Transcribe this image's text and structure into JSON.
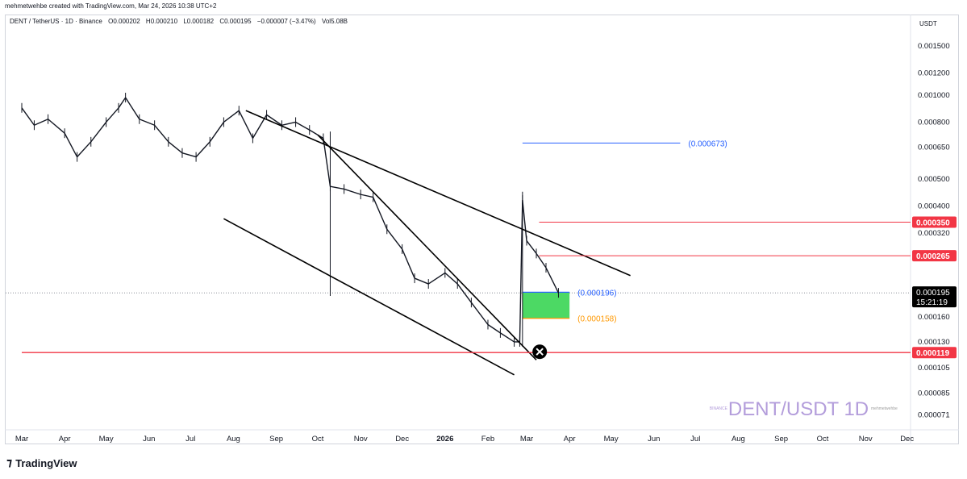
{
  "header": {
    "created_line": "mehmetwehbe created with TradingView.com, Mar 24, 2026 10:38 UTC+2"
  },
  "legend": {
    "symbol": "DENT / TetherUS · 1D · Binance",
    "open": "O0.000202",
    "high": "H0.000210",
    "low": "L0.000182",
    "close": "C0.000195",
    "change": "−0.000007 (−3.47%)",
    "volume": "Vol5.08B"
  },
  "footer": {
    "brand": "TradingView"
  },
  "colors": {
    "accent_blue": "#2962ff",
    "red_level": "#f23645",
    "orange_level": "#ff9800",
    "green_zone": "#4cd964",
    "watermark": "#b39ddb"
  },
  "chart_data": {
    "type": "candlestick",
    "scale": "log",
    "currency_label": "USDT",
    "price_ticks": [
      "0.001500",
      "0.001200",
      "0.001000",
      "0.000800",
      "0.000650",
      "0.000500",
      "0.000400",
      "0.000320",
      "0.000160",
      "0.000130",
      "0.000105",
      "0.000085",
      "0.000071"
    ],
    "time_ticks": [
      "Mar",
      "Apr",
      "May",
      "Jun",
      "Jul",
      "Aug",
      "Sep",
      "Oct",
      "Nov",
      "Dec",
      "2026",
      "Feb",
      "Mar",
      "Apr",
      "May",
      "Jun",
      "Jul",
      "Aug",
      "Sep",
      "Oct",
      "Nov",
      "Dec"
    ],
    "path_points": [
      [
        "2025-03-01",
        0.0009
      ],
      [
        "2025-03-10",
        0.00078
      ],
      [
        "2025-03-20",
        0.00082
      ],
      [
        "2025-04-01",
        0.00073
      ],
      [
        "2025-04-10",
        0.0006
      ],
      [
        "2025-04-20",
        0.00068
      ],
      [
        "2025-05-01",
        0.0008
      ],
      [
        "2025-05-10",
        0.0009
      ],
      [
        "2025-05-15",
        0.00098
      ],
      [
        "2025-05-25",
        0.00082
      ],
      [
        "2025-06-05",
        0.00078
      ],
      [
        "2025-06-15",
        0.00068
      ],
      [
        "2025-06-25",
        0.00062
      ],
      [
        "2025-07-05",
        0.0006
      ],
      [
        "2025-07-15",
        0.00068
      ],
      [
        "2025-07-25",
        0.0008
      ],
      [
        "2025-08-05",
        0.00088
      ],
      [
        "2025-08-15",
        0.0007
      ],
      [
        "2025-08-25",
        0.00085
      ],
      [
        "2025-09-05",
        0.00078
      ],
      [
        "2025-09-15",
        0.0008
      ],
      [
        "2025-09-25",
        0.00075
      ],
      [
        "2025-10-05",
        0.0007
      ],
      [
        "2025-10-10",
        0.00047
      ],
      [
        "2025-10-20",
        0.00046
      ],
      [
        "2025-11-01",
        0.00044
      ],
      [
        "2025-11-10",
        0.00043
      ],
      [
        "2025-11-20",
        0.00033
      ],
      [
        "2025-12-01",
        0.00028
      ],
      [
        "2025-12-10",
        0.00022
      ],
      [
        "2025-12-20",
        0.00021
      ],
      [
        "2026-01-01",
        0.00023
      ],
      [
        "2026-01-10",
        0.00021
      ],
      [
        "2026-01-20",
        0.00018
      ],
      [
        "2026-02-01",
        0.00015
      ],
      [
        "2026-02-10",
        0.00014
      ],
      [
        "2026-02-20",
        0.00013
      ],
      [
        "2026-02-24",
        0.00013
      ],
      [
        "2026-02-26",
        0.00042
      ],
      [
        "2026-03-01",
        0.0003
      ],
      [
        "2026-03-08",
        0.00027
      ],
      [
        "2026-03-15",
        0.00024
      ],
      [
        "2026-03-24",
        0.000195
      ]
    ],
    "last_price": "0.000195",
    "countdown": "15:21:19",
    "levels": [
      {
        "name": "level-0.000350",
        "value": "0.000350",
        "color": "#f23645",
        "from": "2026-03-10"
      },
      {
        "name": "level-0.000265",
        "value": "0.000265",
        "color": "#f23645",
        "from": "2026-03-10"
      },
      {
        "name": "level-0.000119",
        "value": "0.000119",
        "color": "#f23645",
        "from": "2025-03-01"
      }
    ],
    "annotations": [
      {
        "label": "(0.000673)",
        "value": 0.000673,
        "color": "#2962ff"
      },
      {
        "label": "(0.000196)",
        "value": 0.000196,
        "color": "#2962ff"
      },
      {
        "label": "(0.000158)",
        "value": 0.000158,
        "color": "#ff9800"
      }
    ],
    "zone": {
      "top": 0.000196,
      "bottom": 0.000158,
      "from": "2026-02-26",
      "to": "2026-04-01",
      "color": "#4cd964"
    },
    "trendlines": [
      {
        "name": "descending-resistance",
        "points": [
          [
            "2025-08-10",
            0.00088
          ],
          [
            "2026-05-15",
            0.000225
          ]
        ]
      },
      {
        "name": "channel-upper",
        "points": [
          [
            "2025-10-01",
            0.00072
          ],
          [
            "2026-03-08",
            0.000112
          ]
        ]
      },
      {
        "name": "channel-lower",
        "points": [
          [
            "2025-07-25",
            0.00036
          ],
          [
            "2026-02-20",
            9.9e-05
          ]
        ]
      }
    ],
    "watermark": {
      "title": "DENT/USDT 1D",
      "exchange": "BINANCE",
      "author": "mehmetwehbe"
    }
  }
}
